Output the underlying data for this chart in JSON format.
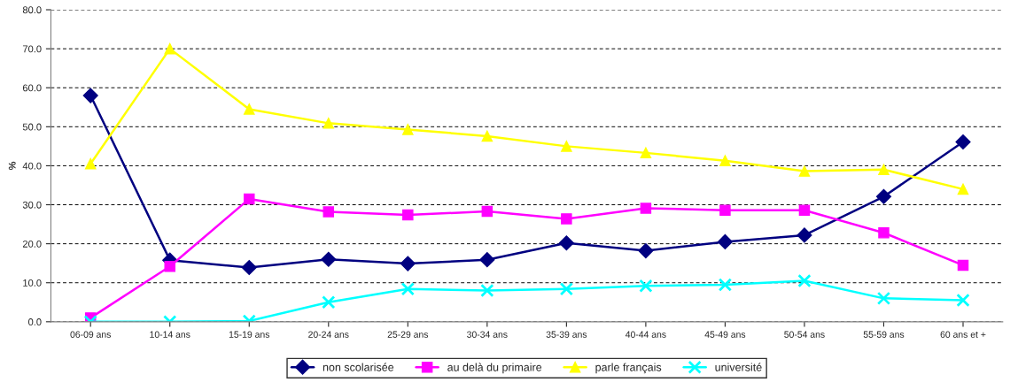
{
  "chart_data": {
    "type": "line",
    "ylabel": "%",
    "categories": [
      "06-09 ans",
      "10-14 ans",
      "15-19 ans",
      "20-24 ans",
      "25-29 ans",
      "30-34 ans",
      "35-39 ans",
      "40-44 ans",
      "45-49 ans",
      "50-54 ans",
      "55-59 ans",
      "60 ans et +"
    ],
    "series": [
      {
        "name": "non scolarisée",
        "color": "#000080",
        "marker": "diamond",
        "values": [
          58.0,
          15.8,
          13.9,
          16.0,
          14.9,
          15.9,
          20.2,
          18.2,
          20.5,
          22.2,
          32.1,
          46.1
        ]
      },
      {
        "name": "au delà du primaire",
        "color": "#ff00ff",
        "marker": "square",
        "values": [
          1.0,
          14.2,
          31.5,
          28.2,
          27.4,
          28.3,
          26.4,
          29.1,
          28.6,
          28.6,
          22.8,
          14.5
        ]
      },
      {
        "name": "parle français",
        "color": "#ffff00",
        "marker": "triangle",
        "values": [
          40.5,
          70.0,
          54.5,
          50.9,
          49.3,
          47.6,
          45.0,
          43.3,
          41.3,
          38.6,
          39.0,
          34.0
        ]
      },
      {
        "name": "université",
        "color": "#00ffff",
        "marker": "cross",
        "values": [
          0.0,
          0.0,
          0.2,
          5.0,
          8.4,
          8.0,
          8.4,
          9.2,
          9.5,
          10.5,
          6.0,
          5.5
        ]
      }
    ],
    "ylim": [
      0,
      80
    ],
    "yticks": [
      {
        "value": 0,
        "label": "0.0"
      },
      {
        "value": 10,
        "label": "10.0"
      },
      {
        "value": 20,
        "label": "20.0"
      },
      {
        "value": 30,
        "label": "30.0"
      },
      {
        "value": 40,
        "label": "40.0"
      },
      {
        "value": 50,
        "label": "50.0"
      },
      {
        "value": 60,
        "label": "60.0"
      },
      {
        "value": 70,
        "label": "70.0"
      },
      {
        "value": 80,
        "label": "80.0"
      }
    ],
    "grid": "y",
    "legend": "bottom",
    "line_style": "solid"
  }
}
